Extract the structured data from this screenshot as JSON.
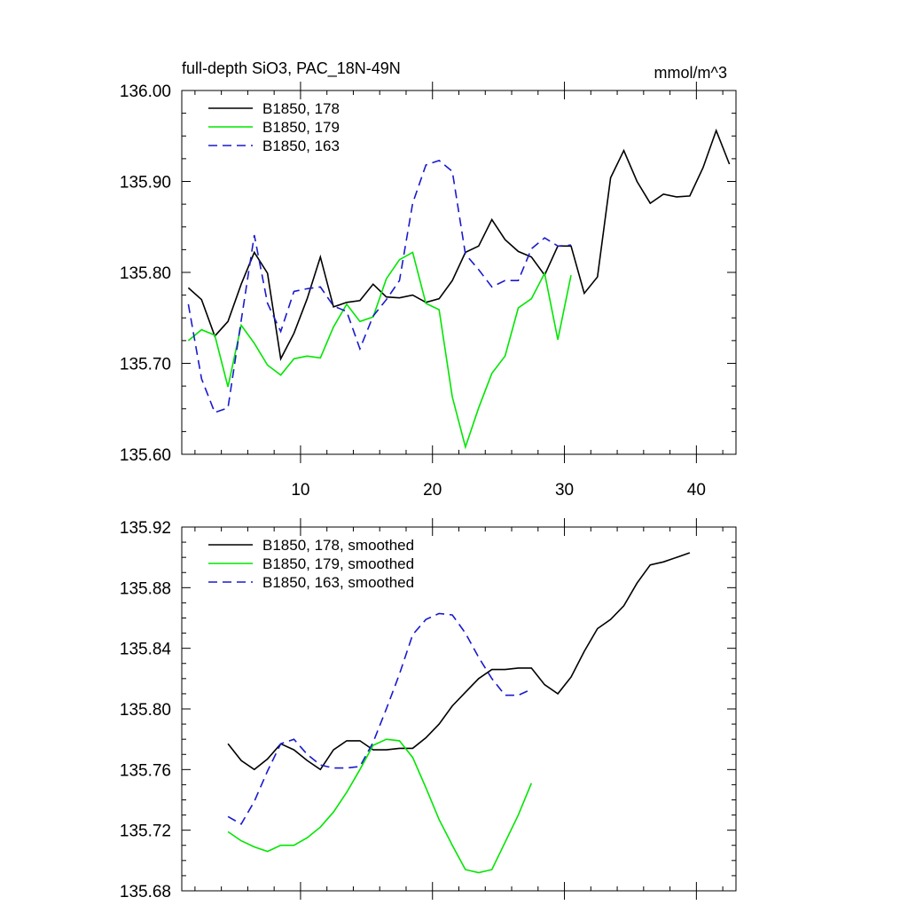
{
  "colors": {
    "black": "#000000",
    "green": "#00e600",
    "blue": "#1a1acc"
  },
  "chart_data": [
    {
      "type": "line",
      "title": "full-depth SiO3, PAC_18N-49N",
      "units": "mmol/m^3",
      "xlim": [
        1,
        43
      ],
      "ylim": [
        135.6,
        136.0
      ],
      "yticks": [
        "136.00",
        "135.90",
        "135.80",
        "135.70",
        "135.60"
      ],
      "xticks": [
        "10",
        "20",
        "30",
        "40"
      ],
      "legend_placement": "top-left",
      "series": [
        {
          "name": "B1850, 178",
          "color": "#000000",
          "dash": "solid",
          "x": [
            1.5,
            2.5,
            3.5,
            4.5,
            5.5,
            6.5,
            7.5,
            8.5,
            9.5,
            10.5,
            11.5,
            12.5,
            13.5,
            14.5,
            15.5,
            16.5,
            17.5,
            18.5,
            19.5,
            20.5,
            21.5,
            22.5,
            23.5,
            24.5,
            25.5,
            26.5,
            27.5,
            28.5,
            29.5,
            30.5,
            31.5,
            32.5,
            33.5,
            34.5,
            35.5,
            36.5,
            37.5,
            38.5,
            39.5,
            40.5,
            41.5,
            42.5
          ],
          "y": [
            135.783,
            135.77,
            135.73,
            135.746,
            135.787,
            135.822,
            135.799,
            135.705,
            135.733,
            135.771,
            135.817,
            135.762,
            135.767,
            135.769,
            135.787,
            135.773,
            135.772,
            135.775,
            135.767,
            135.771,
            135.791,
            135.822,
            135.829,
            135.858,
            135.836,
            135.823,
            135.817,
            135.797,
            135.829,
            135.829,
            135.777,
            135.795,
            135.904,
            135.934,
            135.9,
            135.876,
            135.886,
            135.883,
            135.884,
            135.915,
            135.956,
            135.919
          ]
        },
        {
          "name": "B1850, 179",
          "color": "#00e600",
          "dash": "solid",
          "x": [
            1.5,
            2.5,
            3.5,
            4.5,
            5.5,
            6.5,
            7.5,
            8.5,
            9.5,
            10.5,
            11.5,
            12.5,
            13.5,
            14.5,
            15.5,
            16.5,
            17.5,
            18.5,
            19.5,
            20.5,
            21.5,
            22.5,
            23.5,
            24.5,
            25.5,
            26.5,
            27.5,
            28.5,
            29.5,
            30.5
          ],
          "y": [
            135.725,
            135.737,
            135.731,
            135.674,
            135.742,
            135.722,
            135.698,
            135.687,
            135.705,
            135.708,
            135.706,
            135.74,
            135.765,
            135.746,
            135.751,
            135.793,
            135.814,
            135.822,
            135.766,
            135.759,
            135.663,
            135.608,
            135.651,
            135.689,
            135.708,
            135.761,
            135.771,
            135.799,
            135.726,
            135.797
          ]
        },
        {
          "name": "B1850, 163",
          "color": "#1a1acc",
          "dash": "dashed",
          "x": [
            1.5,
            2.5,
            3.5,
            4.5,
            5.5,
            6.5,
            7.5,
            8.5,
            9.5,
            10.5,
            11.5,
            12.5,
            13.5,
            14.5,
            15.5,
            16.5,
            17.5,
            18.5,
            19.5,
            20.5,
            21.5,
            22.5,
            23.5,
            24.5,
            25.5,
            26.5,
            27.5,
            28.5,
            29.5,
            30.5
          ],
          "y": [
            135.765,
            135.683,
            135.646,
            135.651,
            135.747,
            135.841,
            135.766,
            135.735,
            135.779,
            135.782,
            135.784,
            135.763,
            135.757,
            135.716,
            135.752,
            135.77,
            135.791,
            135.876,
            135.918,
            135.923,
            135.911,
            135.82,
            135.803,
            135.784,
            135.791,
            135.791,
            135.826,
            135.838,
            135.829,
            135.83
          ]
        }
      ]
    },
    {
      "type": "line",
      "title": "",
      "xlim": [
        1,
        43
      ],
      "ylim": [
        135.68,
        135.92
      ],
      "yticks": [
        "135.92",
        "135.88",
        "135.84",
        "135.80",
        "135.76",
        "135.72",
        "135.68"
      ],
      "xticks": [],
      "legend_placement": "top-left",
      "series": [
        {
          "name": "B1850, 178, smoothed",
          "color": "#000000",
          "dash": "solid",
          "x": [
            4.5,
            5.5,
            6.5,
            7.5,
            8.5,
            9.5,
            10.5,
            11.5,
            12.5,
            13.5,
            14.5,
            15.5,
            16.5,
            17.5,
            18.5,
            19.5,
            20.5,
            21.5,
            22.5,
            23.5,
            24.5,
            25.5,
            26.5,
            27.5,
            28.5,
            29.5,
            30.5,
            31.5,
            32.5,
            33.5,
            34.5,
            35.5,
            36.5,
            37.5,
            38.5,
            39.5
          ],
          "y": [
            135.777,
            135.766,
            135.76,
            135.767,
            135.777,
            135.773,
            135.766,
            135.76,
            135.773,
            135.779,
            135.779,
            135.773,
            135.773,
            135.774,
            135.774,
            135.781,
            135.79,
            135.802,
            135.811,
            135.82,
            135.826,
            135.826,
            135.827,
            135.827,
            135.816,
            135.81,
            135.821,
            135.838,
            135.853,
            135.859,
            135.868,
            135.883,
            135.895,
            135.897,
            135.9,
            135.903
          ]
        },
        {
          "name": "B1850, 179, smoothed",
          "color": "#00e600",
          "dash": "solid",
          "x": [
            4.5,
            5.5,
            6.5,
            7.5,
            8.5,
            9.5,
            10.5,
            11.5,
            12.5,
            13.5,
            14.5,
            15.5,
            16.5,
            17.5,
            18.5,
            19.5,
            20.5,
            21.5,
            22.5,
            23.5,
            24.5,
            25.5,
            26.5,
            27.5
          ],
          "y": [
            135.719,
            135.713,
            135.709,
            135.706,
            135.71,
            135.71,
            135.715,
            135.722,
            135.732,
            135.745,
            135.76,
            135.776,
            135.78,
            135.779,
            135.768,
            135.748,
            135.727,
            135.71,
            135.694,
            135.692,
            135.694,
            135.712,
            135.73,
            135.751
          ]
        },
        {
          "name": "B1850, 163, smoothed",
          "color": "#1a1acc",
          "dash": "dashed",
          "x": [
            4.5,
            5.5,
            6.5,
            7.5,
            8.5,
            9.5,
            10.5,
            11.5,
            12.5,
            13.5,
            14.5,
            15.5,
            16.5,
            17.5,
            18.5,
            19.5,
            20.5,
            21.5,
            22.5,
            23.5,
            24.5,
            25.5,
            26.5,
            27.5
          ],
          "y": [
            135.729,
            135.724,
            135.739,
            135.759,
            135.777,
            135.78,
            135.77,
            135.763,
            135.761,
            135.761,
            135.762,
            135.778,
            135.8,
            135.823,
            135.849,
            135.859,
            135.863,
            135.862,
            135.85,
            135.834,
            135.82,
            135.809,
            135.809,
            135.813
          ]
        }
      ]
    }
  ]
}
